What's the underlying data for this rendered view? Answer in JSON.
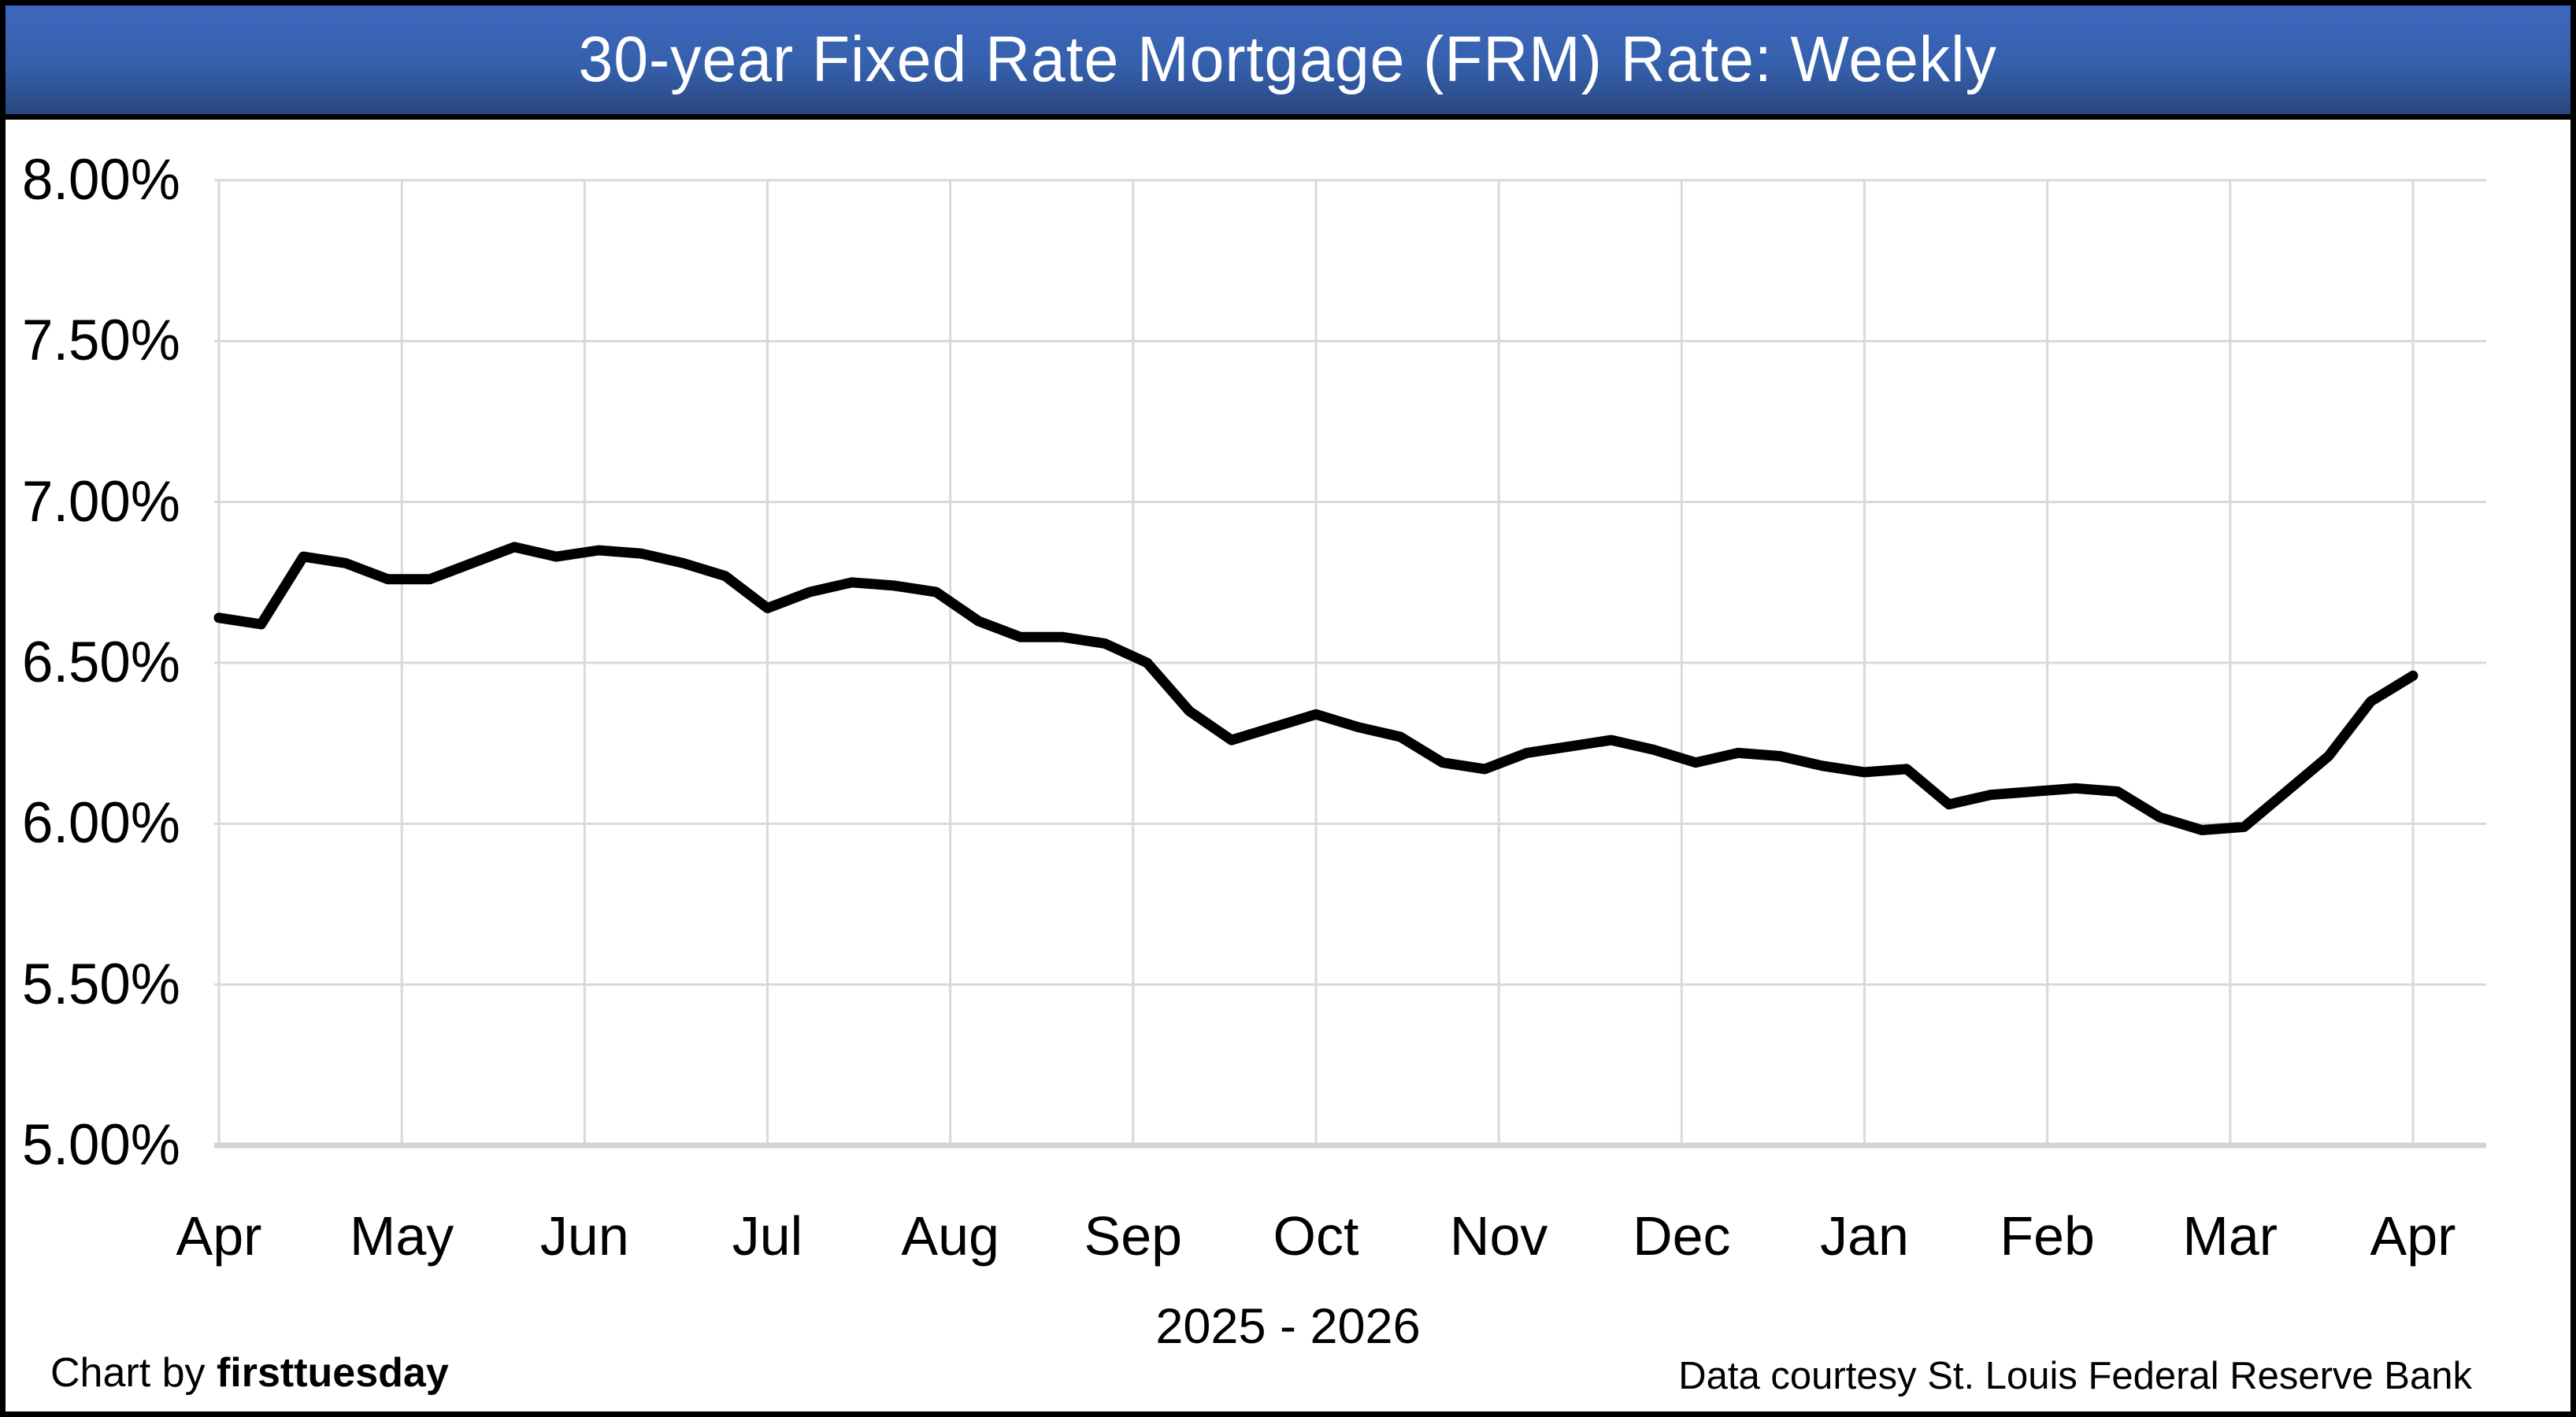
{
  "header": {
    "title": "30-year Fixed Rate Mortgage (FRM) Rate: Weekly"
  },
  "chart_data": {
    "type": "line",
    "title": "30-year Fixed Rate Mortgage (FRM) Rate: Weekly",
    "xlabel": "2025 - 2026",
    "ylabel": "",
    "x_tick_labels": [
      "Apr",
      "May",
      "Jun",
      "Jul",
      "Aug",
      "Sep",
      "Oct",
      "Nov",
      "Dec",
      "Jan",
      "Feb",
      "Mar",
      "Apr"
    ],
    "y_tick_labels": [
      "8.00%",
      "7.50%",
      "7.00%",
      "6.50%",
      "6.00%",
      "5.50%",
      "5.00%"
    ],
    "y_tick_values": [
      8.0,
      7.5,
      7.0,
      6.5,
      6.0,
      5.5,
      5.0
    ],
    "ylim": [
      5.0,
      8.0
    ],
    "grid": true,
    "legend": "none",
    "line_color": "#000000",
    "gridline_color": "#d9d9d9",
    "axis_line_color": "#d2d2d2",
    "series": [
      {
        "name": "30-year FRM rate",
        "cadence": "weekly",
        "values": [
          6.64,
          6.62,
          6.83,
          6.81,
          6.76,
          6.76,
          6.81,
          6.86,
          6.83,
          6.85,
          6.84,
          6.81,
          6.77,
          6.67,
          6.72,
          6.75,
          6.74,
          6.72,
          6.63,
          6.58,
          6.58,
          6.56,
          6.5,
          6.35,
          6.26,
          6.3,
          6.34,
          6.3,
          6.27,
          6.19,
          6.17,
          6.22,
          6.24,
          6.26,
          6.23,
          6.19,
          6.22,
          6.21,
          6.18,
          6.16,
          6.17,
          6.06,
          6.09,
          6.1,
          6.11,
          6.1,
          6.02,
          5.98,
          5.99,
          6.1,
          6.21,
          6.38,
          6.46
        ]
      }
    ]
  },
  "footer": {
    "left_prefix": "Chart by ",
    "left_brand": "firsttuesday",
    "right": "Data courtesy St. Louis Federal Reserve Bank"
  },
  "theme": {
    "header_gradient_top": "#3e68be",
    "header_gradient_mid": "#3560ac",
    "header_gradient_bottom": "#294680",
    "header_text_color": "#ffffff",
    "border_color": "#000000"
  }
}
